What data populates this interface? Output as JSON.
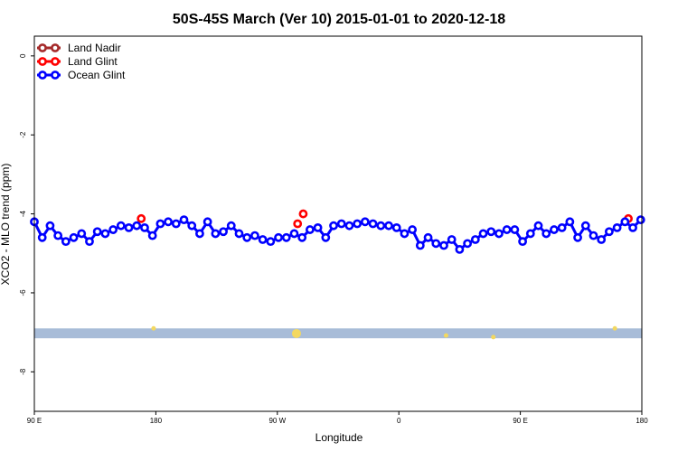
{
  "chart_data": {
    "type": "line",
    "title": "50S-45S March (Ver 10)   2015-01-01 to 2020-12-18",
    "xlabel": "Longitude",
    "ylabel": "XCO2 - MLO trend (ppm)",
    "xlim": [
      -90,
      180
    ],
    "ylim": [
      -9,
      0.5
    ],
    "x_ticks": [
      {
        "value": -90,
        "label": "90 E"
      },
      {
        "value": -36,
        "label": "180"
      },
      {
        "value": 18,
        "label": "90 W"
      },
      {
        "value": 72,
        "label": "0"
      },
      {
        "value": 126,
        "label": "90 E"
      },
      {
        "value": 180,
        "label": "180"
      }
    ],
    "y_ticks": [
      0,
      -2,
      -4,
      -6,
      -8
    ],
    "legend": {
      "position": "top-left",
      "entries": [
        {
          "label": "Land Nadir",
          "color": "#a52a2a"
        },
        {
          "label": "Land Glint",
          "color": "#ff0000"
        },
        {
          "label": "Ocean Glint",
          "color": "#0000ff"
        }
      ]
    },
    "series": [
      {
        "name": "Ocean Glint",
        "color": "#0000ff",
        "x": [
          -90,
          -86.5,
          -83,
          -79.5,
          -76,
          -72.5,
          -69,
          -65.5,
          -62,
          -58.5,
          -55,
          -51.5,
          -48,
          -44.5,
          -41,
          -37.5,
          -34,
          -30.5,
          -27,
          -23.5,
          -20,
          -16.5,
          -13,
          -9.5,
          -6,
          -2.5,
          1,
          4.5,
          8,
          11.5,
          15,
          18.5,
          22,
          25.5,
          29,
          32.5,
          36,
          39.5,
          43,
          46.5,
          50,
          53.5,
          57,
          60.5,
          64,
          67.5,
          71,
          74.5,
          78,
          81.5,
          85,
          88.5,
          92,
          95.5,
          99,
          102.5,
          106,
          109.5,
          113,
          116.5,
          120,
          123.5,
          127,
          130.5,
          134,
          137.5,
          141,
          144.5,
          148,
          151.5,
          155,
          158.5,
          162,
          165.5,
          169,
          172.5,
          176,
          179.5
        ],
        "y": [
          -4.2,
          -4.6,
          -4.3,
          -4.55,
          -4.7,
          -4.6,
          -4.5,
          -4.7,
          -4.45,
          -4.5,
          -4.4,
          -4.3,
          -4.35,
          -4.3,
          -4.35,
          -4.55,
          -4.25,
          -4.2,
          -4.25,
          -4.15,
          -4.3,
          -4.5,
          -4.2,
          -4.5,
          -4.45,
          -4.3,
          -4.5,
          -4.6,
          -4.55,
          -4.65,
          -4.7,
          -4.6,
          -4.6,
          -4.5,
          -4.6,
          -4.4,
          -4.35,
          -4.6,
          -4.3,
          -4.25,
          -4.3,
          -4.25,
          -4.2,
          -4.25,
          -4.3,
          -4.3,
          -4.35,
          -4.5,
          -4.4,
          -4.8,
          -4.6,
          -4.75,
          -4.8,
          -4.65,
          -4.9,
          -4.75,
          -4.65,
          -4.5,
          -4.45,
          -4.5,
          -4.4,
          -4.4,
          -4.7,
          -4.5,
          -4.3,
          -4.5,
          -4.4,
          -4.35,
          -4.2,
          -4.6,
          -4.3,
          -4.55,
          -4.65,
          -4.45,
          -4.35,
          -4.2,
          -4.35,
          -4.15
        ]
      },
      {
        "name": "Land Glint",
        "color": "#ff0000",
        "x": [
          -42.5,
          27,
          29.5,
          174
        ],
        "y": [
          -4.12,
          -4.25,
          -4.0,
          -4.12
        ]
      }
    ],
    "land_band": {
      "y_range": [
        -7.15,
        -6.9
      ],
      "color": "#a8bcd8",
      "markers": [
        {
          "x": -37,
          "y": -6.9,
          "color": "#f3d860"
        },
        {
          "x": 26.5,
          "y": -7.03,
          "color": "#f3d860"
        },
        {
          "x": 168,
          "y": -6.9,
          "color": "#f3d860"
        },
        {
          "x": 114,
          "y": -7.12,
          "color": "#f3d860"
        },
        {
          "x": 93,
          "y": -7.08,
          "color": "#f3d860"
        }
      ]
    }
  }
}
